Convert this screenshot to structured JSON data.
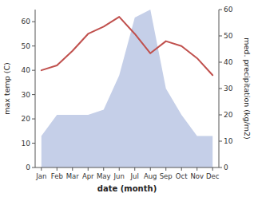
{
  "chart_data": {
    "type": "line",
    "categories": [
      "Jan",
      "Feb",
      "Mar",
      "Apr",
      "May",
      "Jun",
      "Jul",
      "Aug",
      "Sep",
      "Oct",
      "Nov",
      "Dec"
    ],
    "series": [
      {
        "type": "area",
        "axis": "y2",
        "color": "#c5cfe8",
        "values": [
          12,
          20,
          20,
          20,
          22,
          35,
          57,
          60,
          30,
          20,
          12,
          12
        ]
      },
      {
        "type": "line",
        "color": "#c0504d",
        "values": [
          40,
          42,
          48,
          55,
          58,
          62,
          55,
          47,
          52,
          50,
          45,
          38
        ]
      }
    ],
    "x_label": "date (month)",
    "y_label": "max temp (C)",
    "y2_label": "med. precipitation (kg/m2)",
    "ylim": [
      0,
      65
    ],
    "yticks": [
      0,
      10,
      20,
      30,
      40,
      50,
      60
    ],
    "y2lim": [
      0,
      60
    ],
    "y2ticks": [
      0,
      10,
      20,
      30,
      40,
      50,
      60
    ],
    "grid": false
  }
}
